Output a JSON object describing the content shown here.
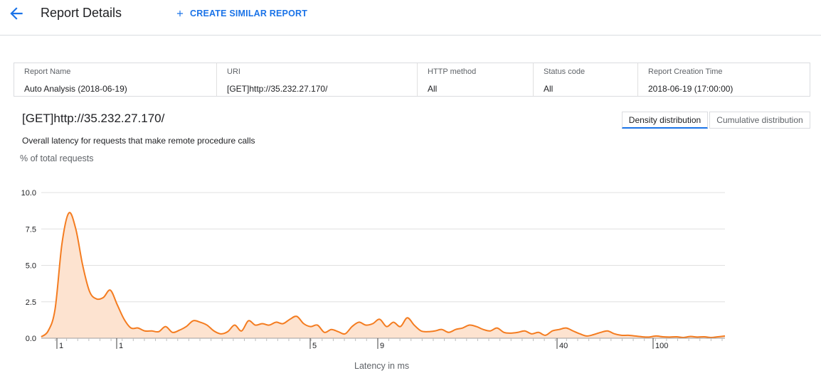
{
  "header": {
    "title": "Report Details",
    "create_label": "CREATE SIMILAR REPORT",
    "icons": {
      "back": "arrow-back-icon",
      "create": "plus-icon"
    }
  },
  "info": {
    "columns": [
      {
        "label": "Report Name",
        "value": "Auto Analysis (2018-06-19)"
      },
      {
        "label": "URI",
        "value": "[GET]http://35.232.27.170/"
      },
      {
        "label": "HTTP method",
        "value": "All"
      },
      {
        "label": "Status code",
        "value": "All"
      },
      {
        "label": "Report Creation Time",
        "value": "2018-06-19 (17:00:00)"
      }
    ]
  },
  "chart": {
    "title": "[GET]http://35.232.27.170/",
    "subtitle": "Overall latency for requests that make remote procedure calls",
    "y_title": "% of total requests",
    "x_title": "Latency in ms",
    "toggle_density": "Density distribution",
    "toggle_cumulative": "Cumulative distribution",
    "selected_view": "Density distribution"
  },
  "colors": {
    "accent": "#1a73e8",
    "series_line": "#f47c20",
    "series_fill": "#fde3d0"
  },
  "chart_data": {
    "type": "area",
    "title": "",
    "xlabel": "Latency in ms",
    "ylabel": "% of total requests",
    "ylim": [
      0,
      10
    ],
    "y_ticks": [
      "0.0",
      "2.5",
      "5.0",
      "7.5",
      "10.0"
    ],
    "x_tick_labels": [
      "1",
      "1",
      "5",
      "9",
      "40",
      "100"
    ],
    "grid": true,
    "legend": "none",
    "series": [
      {
        "values": [
          0.1,
          0.5,
          2.0,
          6.5,
          8.6,
          7.5,
          5.0,
          3.2,
          2.7,
          2.8,
          3.3,
          2.3,
          1.3,
          0.7,
          0.7,
          0.5,
          0.5,
          0.45,
          0.8,
          0.4,
          0.55,
          0.8,
          1.2,
          1.1,
          0.9,
          0.5,
          0.3,
          0.45,
          0.9,
          0.5,
          1.2,
          0.9,
          1.0,
          0.9,
          1.1,
          1.0,
          1.3,
          1.5,
          1.0,
          0.8,
          0.9,
          0.4,
          0.6,
          0.45,
          0.3,
          0.8,
          1.1,
          0.9,
          1.0,
          1.3,
          0.8,
          1.1,
          0.8,
          1.4,
          0.9,
          0.5,
          0.45,
          0.5,
          0.6,
          0.4,
          0.6,
          0.7,
          0.9,
          0.8,
          0.6,
          0.5,
          0.7,
          0.4,
          0.35,
          0.4,
          0.5,
          0.3,
          0.4,
          0.2,
          0.5,
          0.6,
          0.7,
          0.5,
          0.3,
          0.15,
          0.25,
          0.4,
          0.5,
          0.3,
          0.2,
          0.2,
          0.15,
          0.1,
          0.08,
          0.15,
          0.1,
          0.08,
          0.1,
          0.05,
          0.12,
          0.08,
          0.1,
          0.05,
          0.1,
          0.15
        ]
      }
    ]
  }
}
